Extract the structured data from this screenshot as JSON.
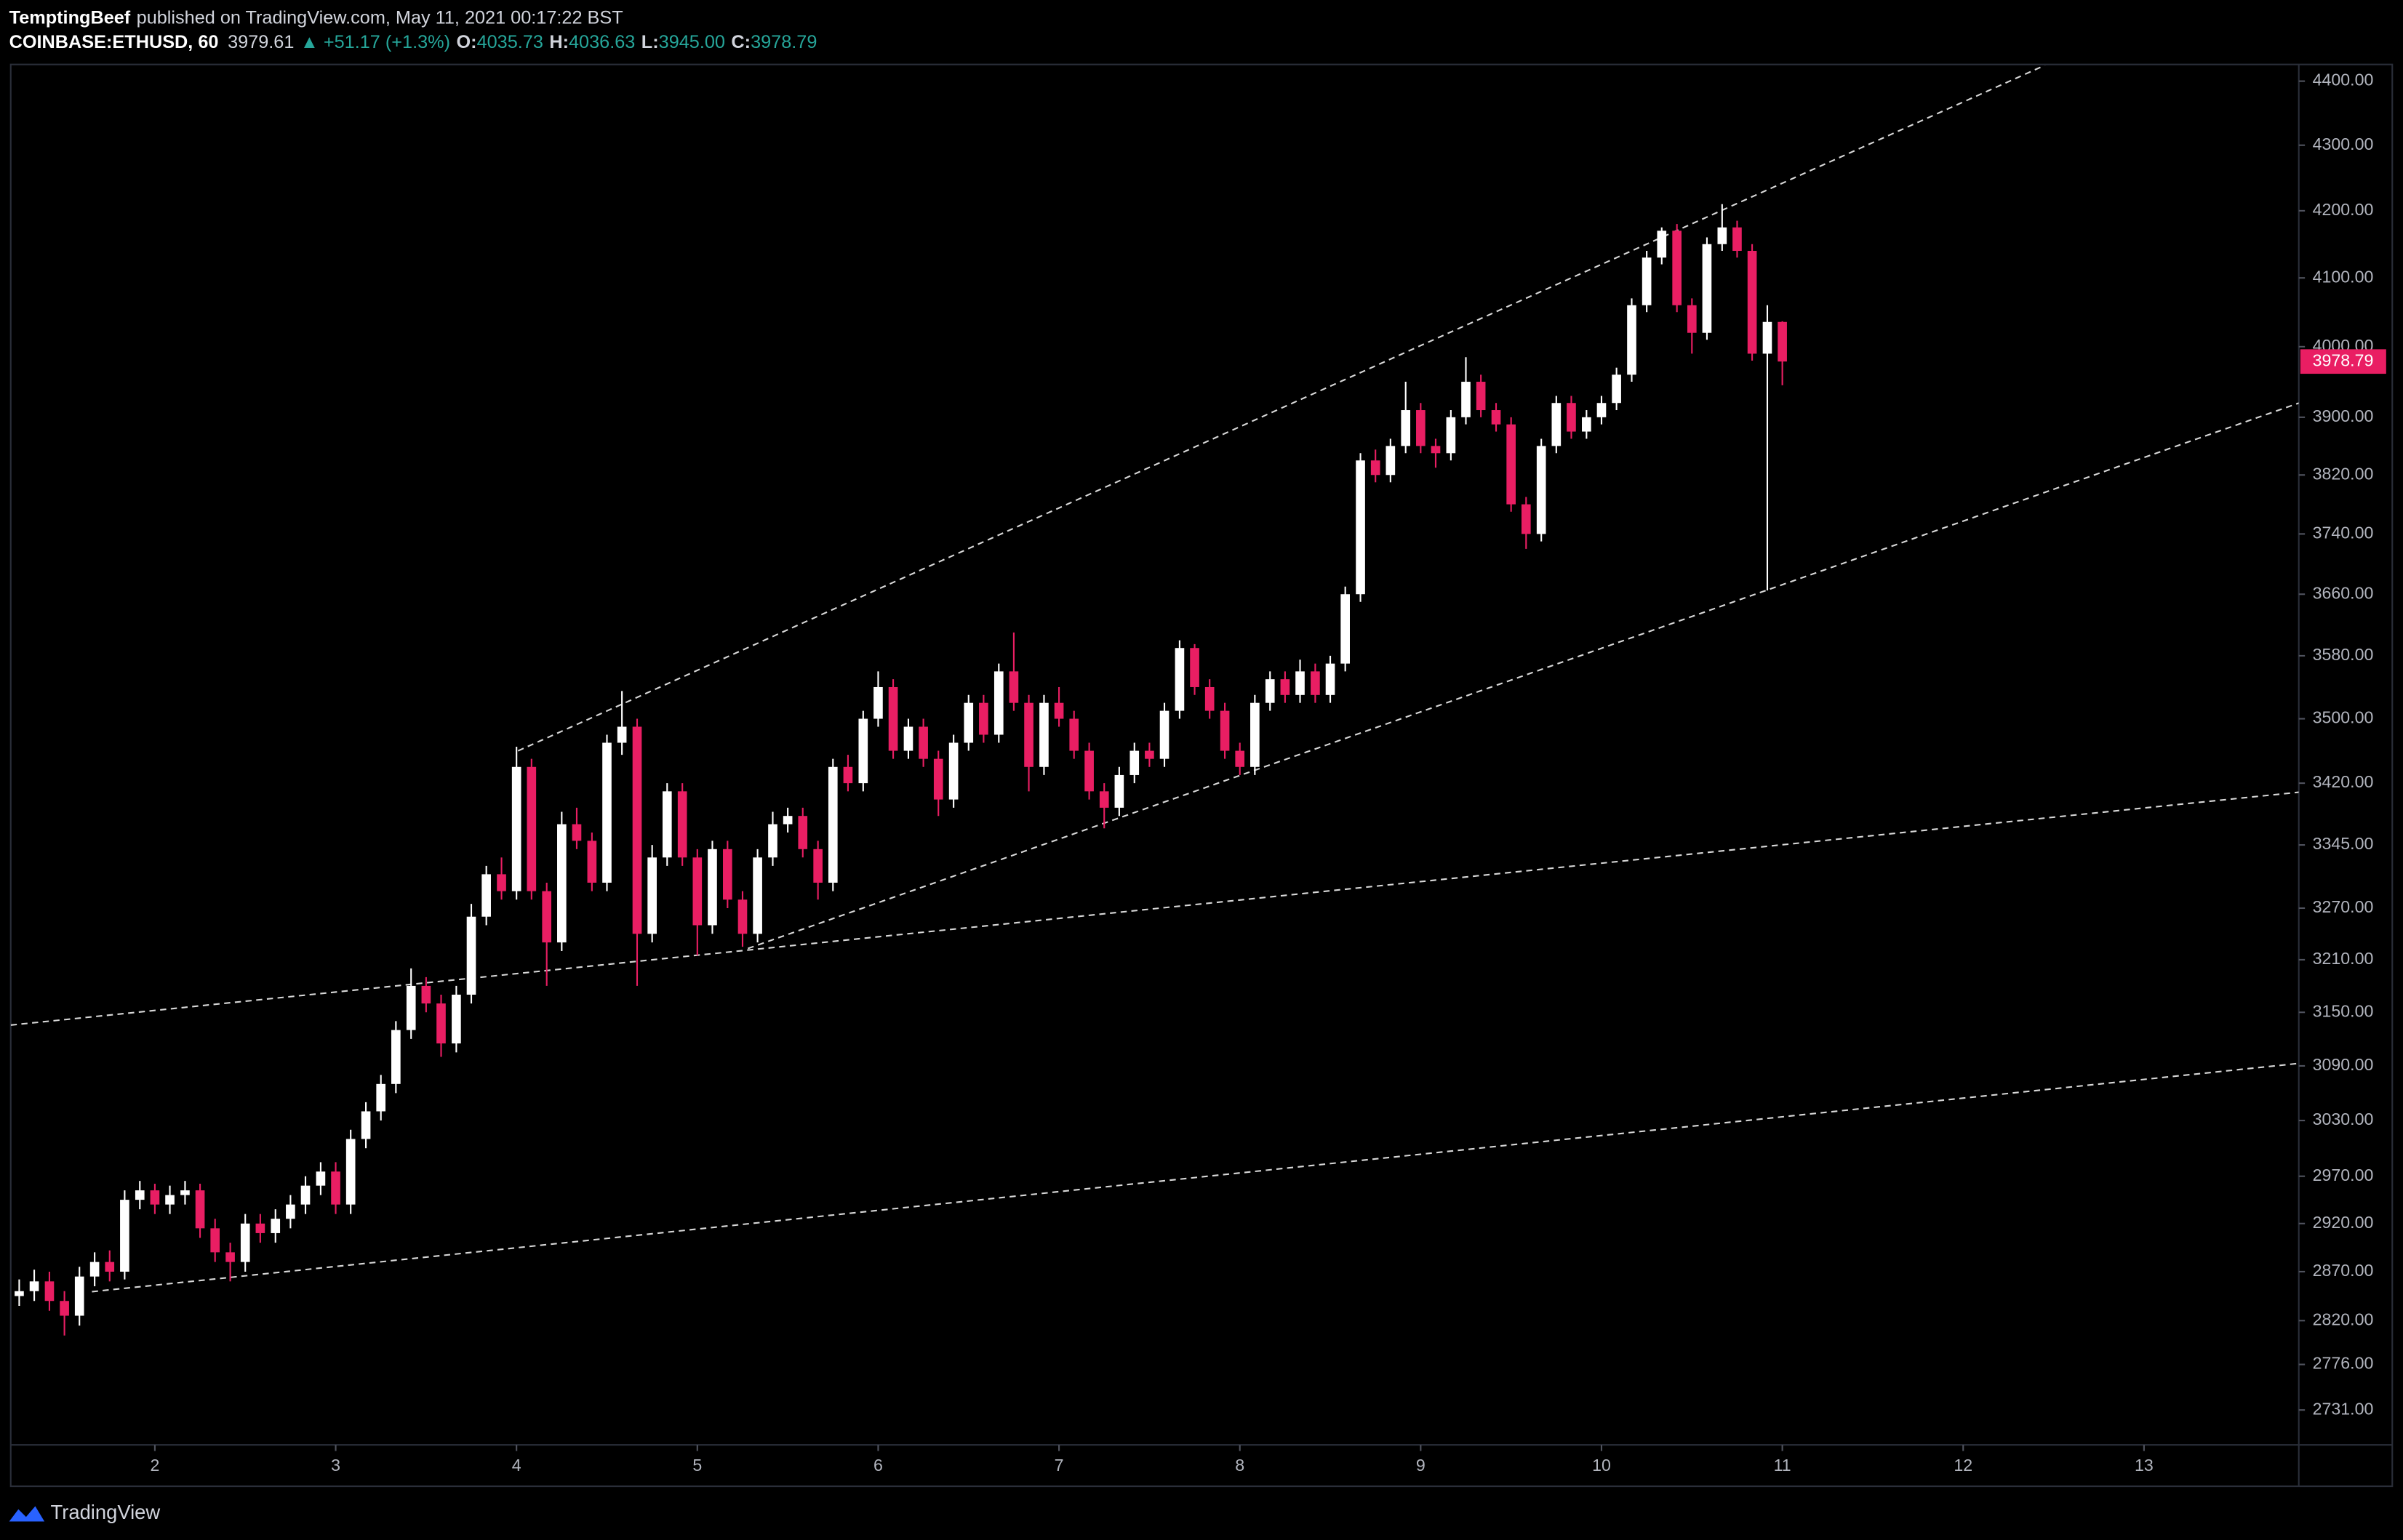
{
  "header": {
    "author": "TemptingBeef",
    "published": "published on TradingView.com, May 11, 2021 00:17:22 BST",
    "symbol": "COINBASE:ETHUSD, 60",
    "price": "3979.61",
    "change": "▲ +51.17 (+1.3%)",
    "o_label": "O:",
    "o": "4035.73",
    "h_label": "H:",
    "h": "4036.63",
    "l_label": "L:",
    "l": "3945.00",
    "c_label": "C:",
    "c": "3978.79"
  },
  "footer": {
    "brand": "TradingView"
  },
  "chart_data": {
    "type": "candlestick",
    "log_scale": true,
    "up_color": "#ffffff",
    "down_color": "#e91e63",
    "xlim": [
      1.203,
      13.856
    ],
    "xticks": [
      2,
      3,
      4,
      5,
      6,
      7,
      8,
      9,
      10,
      11,
      12,
      13
    ],
    "ylim": [
      2697,
      4424
    ],
    "yticks": [
      {
        "value": 2731,
        "label": "2731.00"
      },
      {
        "value": 2776,
        "label": "2776.00"
      },
      {
        "value": 2820,
        "label": "2820.00"
      },
      {
        "value": 2870,
        "label": "2870.00"
      },
      {
        "value": 2920,
        "label": "2920.00"
      },
      {
        "value": 2970,
        "label": "2970.00"
      },
      {
        "value": 3030,
        "label": "3030.00"
      },
      {
        "value": 3090,
        "label": "3090.00"
      },
      {
        "value": 3150,
        "label": "3150.00"
      },
      {
        "value": 3210,
        "label": "3210.00"
      },
      {
        "value": 3270,
        "label": "3270.00"
      },
      {
        "value": 3345,
        "label": "3345.00"
      },
      {
        "value": 3420,
        "label": "3420.00"
      },
      {
        "value": 3500,
        "label": "3500.00"
      },
      {
        "value": 3580,
        "label": "3580.00"
      },
      {
        "value": 3660,
        "label": "3660.00"
      },
      {
        "value": 3740,
        "label": "3740.00"
      },
      {
        "value": 3820,
        "label": "3820.00"
      },
      {
        "value": 3900,
        "label": "3900.00"
      },
      {
        "value": 4000,
        "label": "4000.00"
      },
      {
        "value": 4100,
        "label": "4100.00"
      },
      {
        "value": 4200,
        "label": "4200.00"
      },
      {
        "value": 4300,
        "label": "4300.00"
      },
      {
        "value": 4400,
        "label": "4400.00"
      }
    ],
    "x": [
      1.25,
      1.333,
      1.417,
      1.5,
      1.583,
      1.667,
      1.75,
      1.833,
      1.917,
      2.0,
      2.083,
      2.167,
      2.25,
      2.333,
      2.417,
      2.5,
      2.583,
      2.667,
      2.75,
      2.833,
      2.917,
      3.0,
      3.083,
      3.167,
      3.25,
      3.333,
      3.417,
      3.5,
      3.583,
      3.667,
      3.75,
      3.833,
      3.917,
      4.0,
      4.083,
      4.167,
      4.25,
      4.333,
      4.417,
      4.5,
      4.583,
      4.667,
      4.75,
      4.833,
      4.917,
      5.0,
      5.083,
      5.167,
      5.25,
      5.333,
      5.417,
      5.5,
      5.583,
      5.667,
      5.75,
      5.833,
      5.917,
      6.0,
      6.083,
      6.167,
      6.25,
      6.333,
      6.417,
      6.5,
      6.583,
      6.667,
      6.75,
      6.833,
      6.917,
      7.0,
      7.083,
      7.167,
      7.25,
      7.333,
      7.417,
      7.5,
      7.583,
      7.667,
      7.75,
      7.833,
      7.917,
      8.0,
      8.083,
      8.167,
      8.25,
      8.333,
      8.417,
      8.5,
      8.583,
      8.667,
      8.75,
      8.833,
      8.917,
      9.0,
      9.083,
      9.167,
      9.25,
      9.333,
      9.417,
      9.5,
      9.583,
      9.667,
      9.75,
      9.833,
      9.917,
      10.0,
      10.083,
      10.167,
      10.25,
      10.333,
      10.417,
      10.5,
      10.583,
      10.667,
      10.75,
      10.833,
      10.917,
      11.0
    ],
    "open": [
      2845,
      2850,
      2860,
      2840,
      2825,
      2865,
      2880,
      2870,
      2945,
      2955,
      2940,
      2950,
      2955,
      2915,
      2890,
      2880,
      2920,
      2910,
      2925,
      2940,
      2960,
      2975,
      2940,
      3010,
      3040,
      3070,
      3130,
      3180,
      3160,
      3115,
      3170,
      3260,
      3310,
      3290,
      3440,
      3290,
      3230,
      3370,
      3350,
      3300,
      3470,
      3490,
      3240,
      3330,
      3410,
      3330,
      3250,
      3340,
      3280,
      3240,
      3330,
      3370,
      3380,
      3340,
      3300,
      3440,
      3420,
      3500,
      3540,
      3460,
      3490,
      3450,
      3400,
      3470,
      3520,
      3480,
      3560,
      3520,
      3440,
      3520,
      3500,
      3460,
      3410,
      3390,
      3430,
      3460,
      3450,
      3510,
      3590,
      3540,
      3510,
      3460,
      3440,
      3520,
      3550,
      3530,
      3560,
      3530,
      3570,
      3660,
      3840,
      3820,
      3860,
      3910,
      3860,
      3850,
      3900,
      3950,
      3910,
      3890,
      3780,
      3740,
      3860,
      3920,
      3880,
      3900,
      3920,
      3960,
      4060,
      4130,
      4170,
      4060,
      4020,
      4150,
      4175,
      4140,
      3990,
      4035.73
    ],
    "high": [
      2862,
      2872,
      2870,
      2850,
      2875,
      2890,
      2892,
      2955,
      2965,
      2962,
      2960,
      2965,
      2962,
      2925,
      2900,
      2930,
      2930,
      2935,
      2950,
      2970,
      2985,
      2985,
      3020,
      3050,
      3080,
      3140,
      3200,
      3190,
      3170,
      3180,
      3275,
      3320,
      3330,
      3465,
      3450,
      3300,
      3385,
      3390,
      3360,
      3480,
      3535,
      3500,
      3345,
      3420,
      3420,
      3340,
      3350,
      3350,
      3290,
      3340,
      3385,
      3390,
      3390,
      3350,
      3450,
      3455,
      3510,
      3560,
      3550,
      3500,
      3500,
      3460,
      3480,
      3530,
      3530,
      3570,
      3610,
      3530,
      3530,
      3540,
      3510,
      3470,
      3420,
      3440,
      3470,
      3470,
      3520,
      3600,
      3595,
      3550,
      3520,
      3470,
      3530,
      3560,
      3560,
      3575,
      3570,
      3580,
      3670,
      3850,
      3855,
      3870,
      3950,
      3920,
      3870,
      3910,
      3985,
      3960,
      3920,
      3900,
      3790,
      3870,
      3930,
      3930,
      3910,
      3930,
      3970,
      4070,
      4140,
      4175,
      4180,
      4070,
      4160,
      4210,
      4185,
      4150,
      4060,
      4036.63
    ],
    "low": [
      2835,
      2840,
      2830,
      2805,
      2815,
      2855,
      2860,
      2862,
      2935,
      2930,
      2930,
      2940,
      2905,
      2880,
      2860,
      2870,
      2900,
      2900,
      2915,
      2930,
      2950,
      2930,
      2930,
      3000,
      3030,
      3060,
      3120,
      3150,
      3100,
      3105,
      3160,
      3250,
      3280,
      3280,
      3280,
      3180,
      3220,
      3340,
      3290,
      3290,
      3455,
      3180,
      3230,
      3320,
      3320,
      3215,
      3240,
      3270,
      3225,
      3230,
      3320,
      3360,
      3330,
      3280,
      3290,
      3410,
      3410,
      3490,
      3450,
      3450,
      3440,
      3380,
      3390,
      3460,
      3470,
      3470,
      3510,
      3410,
      3430,
      3490,
      3450,
      3400,
      3365,
      3380,
      3420,
      3440,
      3440,
      3500,
      3530,
      3500,
      3450,
      3430,
      3430,
      3510,
      3520,
      3520,
      3520,
      3520,
      3560,
      3650,
      3810,
      3810,
      3850,
      3850,
      3830,
      3840,
      3890,
      3900,
      3880,
      3770,
      3720,
      3730,
      3850,
      3870,
      3870,
      3890,
      3910,
      3950,
      4050,
      4120,
      4050,
      3990,
      4010,
      4140,
      4130,
      3980,
      3665,
      3945
    ],
    "close": [
      2850,
      2860,
      2840,
      2825,
      2865,
      2880,
      2870,
      2945,
      2955,
      2940,
      2950,
      2955,
      2915,
      2890,
      2880,
      2920,
      2910,
      2925,
      2940,
      2960,
      2975,
      2940,
      3010,
      3040,
      3070,
      3130,
      3180,
      3160,
      3115,
      3170,
      3260,
      3310,
      3290,
      3440,
      3290,
      3230,
      3370,
      3350,
      3300,
      3470,
      3490,
      3240,
      3330,
      3410,
      3330,
      3250,
      3340,
      3280,
      3240,
      3330,
      3370,
      3380,
      3340,
      3300,
      3440,
      3420,
      3500,
      3540,
      3460,
      3490,
      3450,
      3400,
      3470,
      3520,
      3480,
      3560,
      3520,
      3440,
      3520,
      3500,
      3460,
      3410,
      3390,
      3430,
      3460,
      3450,
      3510,
      3590,
      3540,
      3510,
      3460,
      3440,
      3520,
      3550,
      3530,
      3560,
      3530,
      3570,
      3660,
      3840,
      3820,
      3860,
      3910,
      3860,
      3850,
      3900,
      3950,
      3910,
      3890,
      3780,
      3740,
      3860,
      3920,
      3880,
      3900,
      3920,
      3960,
      4060,
      4130,
      4170,
      4060,
      4020,
      4150,
      4175,
      4140,
      3990,
      4035.73,
      3978.79
    ]
  }
}
